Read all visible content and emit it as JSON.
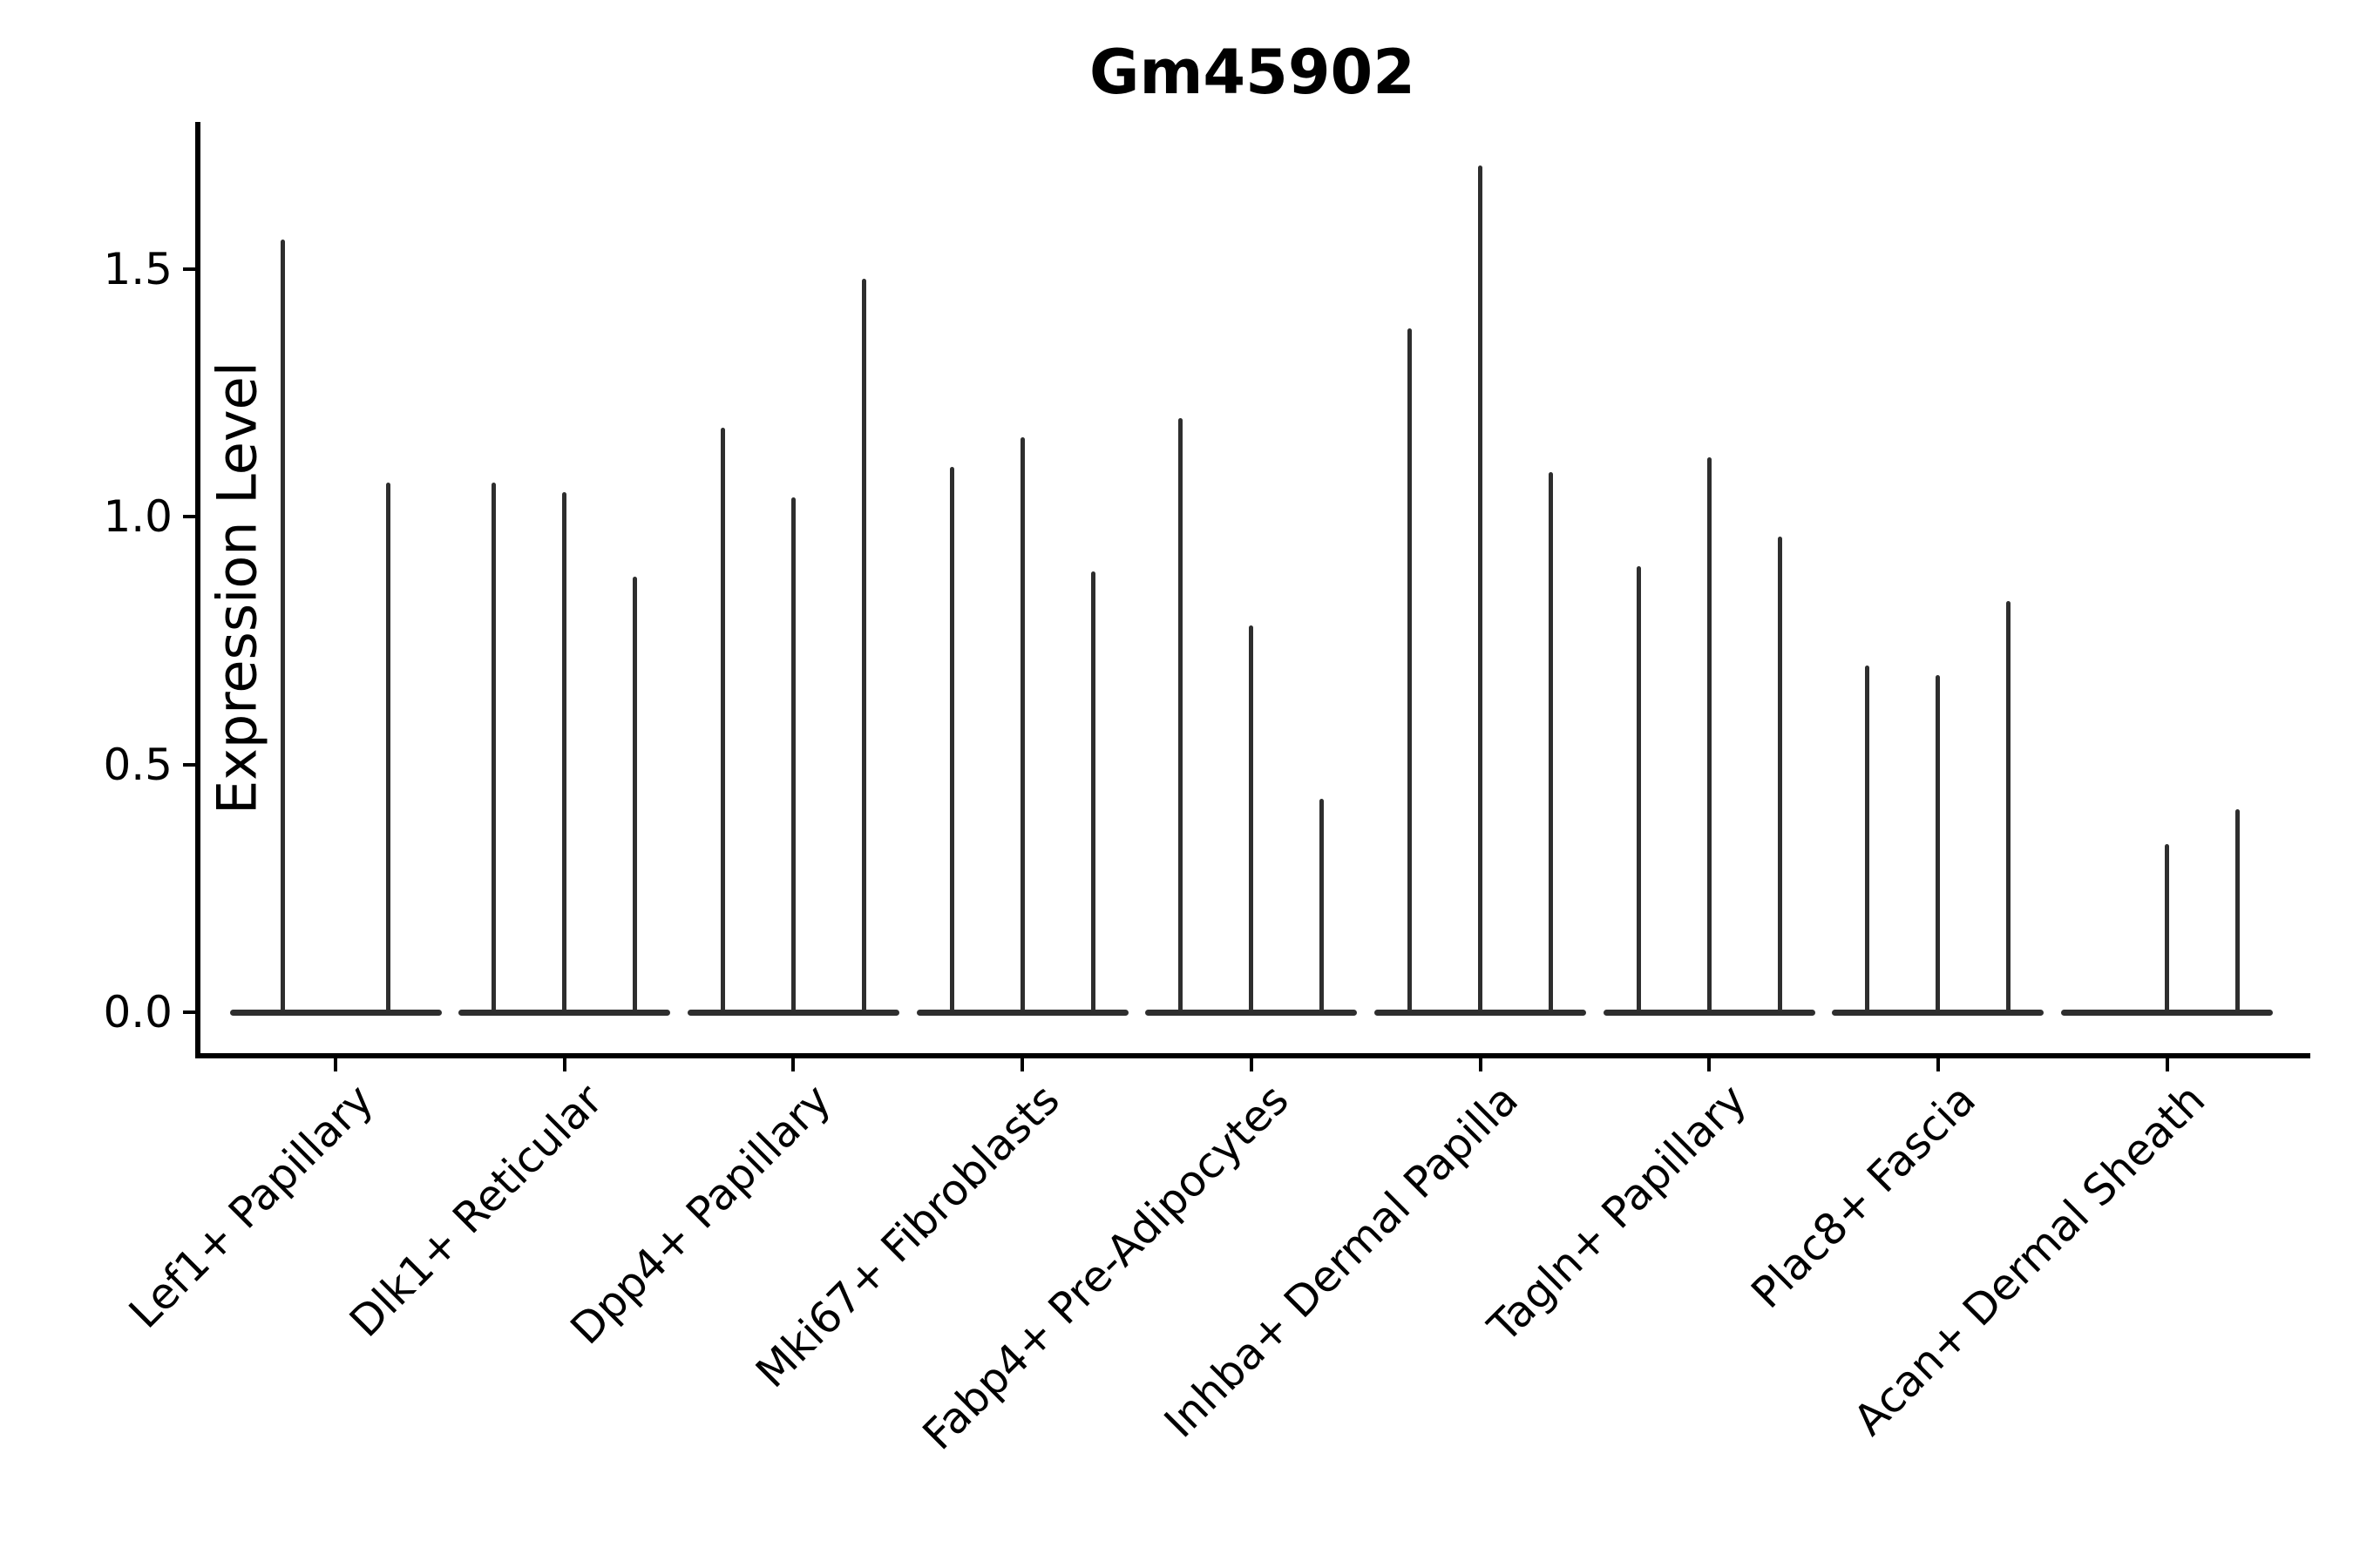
{
  "title": "Gm45902",
  "chart_data": {
    "type": "violin",
    "title": "Gm45902",
    "xlabel": "",
    "ylabel": "Expression Level",
    "ylim": [
      0,
      1.8
    ],
    "yticks": [
      0.0,
      0.5,
      1.0,
      1.5
    ],
    "ytick_labels": [
      "0.0",
      "0.5",
      "1.0",
      "1.5"
    ],
    "grid": false,
    "legend_position": "none",
    "description": "Violin plot of Gm45902 expression; each category shows 2-3 very thin violins (one per sample) rising from a flat base of zero-expression cells. Values below are the maximum expression (spike top) of each violin; 0 means a flat violin with no spike.",
    "categories": [
      "Lef1+ Papillary",
      "Dlk1+ Reticular",
      "Dpp4+ Papillary",
      "Mki67+ Fibroblasts",
      "Fabp4+ Pre-Adipocytes",
      "Inhba+ Dermal Papilla",
      "Tagln+ Papillary",
      "Plac8+ Fascia",
      "Acan+ Dermal Sheath"
    ],
    "groups": [
      {
        "label": "Lef1+ Papillary",
        "violin_spike_heights": [
          1.56,
          1.07
        ]
      },
      {
        "label": "Dlk1+ Reticular",
        "violin_spike_heights": [
          1.07,
          1.05,
          0.88
        ]
      },
      {
        "label": "Dpp4+ Papillary",
        "violin_spike_heights": [
          1.18,
          1.04,
          1.48
        ]
      },
      {
        "label": "Mki67+ Fibroblasts",
        "violin_spike_heights": [
          1.1,
          1.16,
          0.89
        ]
      },
      {
        "label": "Fabp4+ Pre-Adipocytes",
        "violin_spike_heights": [
          1.2,
          0.78,
          0.43
        ]
      },
      {
        "label": "Inhba+ Dermal Papilla",
        "violin_spike_heights": [
          1.38,
          1.71,
          1.09
        ]
      },
      {
        "label": "Tagln+ Papillary",
        "violin_spike_heights": [
          0.9,
          1.12,
          0.96
        ]
      },
      {
        "label": "Plac8+ Fascia",
        "violin_spike_heights": [
          0.7,
          0.68,
          0.83
        ]
      },
      {
        "label": "Acan+ Dermal Sheath",
        "violin_spike_heights": [
          0,
          0.34,
          0.41
        ]
      }
    ],
    "colors": {
      "violin": "#2e2e2e",
      "axis": "#000000",
      "text": "#000000",
      "background": "#ffffff"
    }
  }
}
